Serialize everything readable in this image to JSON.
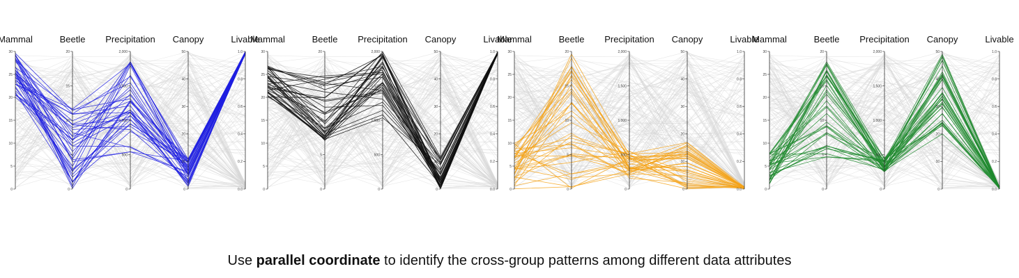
{
  "caption": {
    "prefix": "Use ",
    "bold": "parallel coordinate",
    "suffix": " to identify the cross-group patterns among different data attributes"
  },
  "colors": {
    "context": "#d6d6d6",
    "axis": "#333333"
  },
  "chart_data": [
    {
      "type": "parallel-coordinates",
      "highlight_color": "#1f1fe0",
      "axes": [
        {
          "name": "Mammal",
          "range": [
            0,
            30
          ],
          "ticks": [
            "0",
            "5",
            "10",
            "15",
            "20",
            "25",
            "30"
          ]
        },
        {
          "name": "Beetle",
          "range": [
            0,
            20
          ],
          "ticks": [
            "0",
            "5",
            "10",
            "15",
            "20"
          ]
        },
        {
          "name": "Precipitation",
          "range": [
            0,
            2000
          ],
          "ticks": [
            "0",
            "500",
            "1,000",
            "1,500",
            "2,000"
          ]
        },
        {
          "name": "Canopy",
          "range": [
            0,
            50
          ],
          "ticks": [
            "0",
            "10",
            "20",
            "30",
            "40",
            "50"
          ]
        },
        {
          "name": "Livable",
          "range": [
            0,
            1
          ],
          "ticks": [
            "0.0",
            "0.2",
            "0.4",
            "0.6",
            "0.8",
            "1.0"
          ]
        }
      ],
      "group": {
        "Mammal": [
          20,
          30
        ],
        "Beetle": [
          0,
          12
        ],
        "Precipitation": [
          500,
          1900
        ],
        "Canopy": [
          0,
          12
        ],
        "Livable": [
          0.98,
          1.0
        ]
      }
    },
    {
      "type": "parallel-coordinates",
      "highlight_color": "#111111",
      "axes": [
        {
          "name": "Mammal",
          "range": [
            0,
            30
          ],
          "ticks": [
            "0",
            "5",
            "10",
            "15",
            "20",
            "25",
            "30"
          ]
        },
        {
          "name": "Beetle",
          "range": [
            0,
            20
          ],
          "ticks": [
            "0",
            "5",
            "10",
            "15",
            "20"
          ]
        },
        {
          "name": "Precipitation",
          "range": [
            0,
            2000
          ],
          "ticks": [
            "0",
            "500",
            "1,000",
            "1,500",
            "2,000"
          ]
        },
        {
          "name": "Canopy",
          "range": [
            0,
            50
          ],
          "ticks": [
            "0",
            "10",
            "20",
            "30",
            "40",
            "50"
          ]
        },
        {
          "name": "Livable",
          "range": [
            0,
            1
          ],
          "ticks": [
            "0.0",
            "0.2",
            "0.4",
            "0.6",
            "0.8",
            "1.0"
          ]
        }
      ],
      "group": {
        "Mammal": [
          20,
          27
        ],
        "Beetle": [
          7,
          17
        ],
        "Precipitation": [
          1000,
          2000
        ],
        "Canopy": [
          0,
          12
        ],
        "Livable": [
          0.98,
          1.0
        ]
      }
    },
    {
      "type": "parallel-coordinates",
      "highlight_color": "#f5a31a",
      "axes": [
        {
          "name": "Mammal",
          "range": [
            0,
            30
          ],
          "ticks": [
            "0",
            "5",
            "10",
            "15",
            "20",
            "25",
            "30"
          ]
        },
        {
          "name": "Beetle",
          "range": [
            0,
            20
          ],
          "ticks": [
            "0",
            "5",
            "10",
            "15",
            "20"
          ]
        },
        {
          "name": "Precipitation",
          "range": [
            0,
            2000
          ],
          "ticks": [
            "0",
            "500",
            "1,000",
            "1,500",
            "2,000"
          ]
        },
        {
          "name": "Canopy",
          "range": [
            0,
            50
          ],
          "ticks": [
            "0",
            "10",
            "20",
            "30",
            "40",
            "50"
          ]
        },
        {
          "name": "Livable",
          "range": [
            0,
            1
          ],
          "ticks": [
            "0.0",
            "0.2",
            "0.4",
            "0.6",
            "0.8",
            "1.0"
          ]
        }
      ],
      "group": {
        "Mammal": [
          0,
          10
        ],
        "Beetle": [
          0,
          20
        ],
        "Precipitation": [
          150,
          550
        ],
        "Canopy": [
          0,
          17
        ],
        "Livable": [
          0,
          0.02
        ]
      }
    },
    {
      "type": "parallel-coordinates",
      "highlight_color": "#1f8a2e",
      "axes": [
        {
          "name": "Mammal",
          "range": [
            0,
            30
          ],
          "ticks": [
            "0",
            "5",
            "10",
            "15",
            "20",
            "25",
            "30"
          ]
        },
        {
          "name": "Beetle",
          "range": [
            0,
            20
          ],
          "ticks": [
            "0",
            "5",
            "10",
            "15",
            "20"
          ]
        },
        {
          "name": "Precipitation",
          "range": [
            0,
            2000
          ],
          "ticks": [
            "0",
            "500",
            "1,000",
            "1,500",
            "2,000"
          ]
        },
        {
          "name": "Canopy",
          "range": [
            0,
            50
          ],
          "ticks": [
            "0",
            "10",
            "20",
            "30",
            "40",
            "50"
          ]
        },
        {
          "name": "Livable",
          "range": [
            0,
            1
          ],
          "ticks": [
            "0.0",
            "0.2",
            "0.4",
            "0.6",
            "0.8",
            "1.0"
          ]
        }
      ],
      "group": {
        "Mammal": [
          1,
          8
        ],
        "Beetle": [
          4,
          19
        ],
        "Precipitation": [
          250,
          450
        ],
        "Canopy": [
          20,
          50
        ],
        "Livable": [
          0,
          0.02
        ]
      }
    }
  ]
}
